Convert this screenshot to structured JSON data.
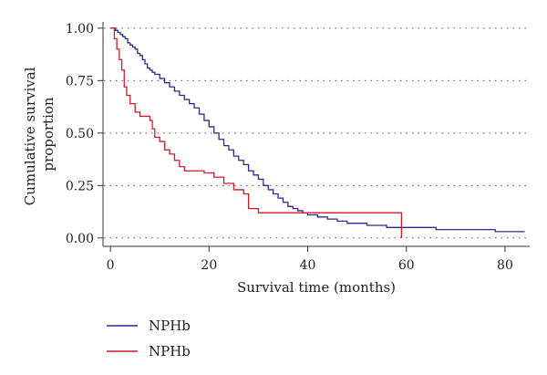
{
  "chart_data": {
    "type": "line",
    "title": "",
    "xlabel": "Survival time (months)",
    "ylabel": "Cumulative survival proportion",
    "ylabel_lines": [
      "Cumulative survival",
      "proportion"
    ],
    "xlim": [
      -1.5,
      85
    ],
    "ylim": [
      -0.04,
      1.03
    ],
    "xticks": [
      0,
      20,
      40,
      60,
      80
    ],
    "xtick_labels": [
      "0",
      "20",
      "40",
      "60",
      "80"
    ],
    "yticks": [
      0,
      0.25,
      0.5,
      0.75,
      1.0
    ],
    "ytick_labels": [
      "0.00",
      "0.25",
      "0.50",
      "0.75",
      "1.00"
    ],
    "grid": "horizontal-dotted",
    "legend_position": "bottom-left",
    "series": [
      {
        "name": "NPHb",
        "color": "#2b2b8f",
        "step": true,
        "x": [
          0,
          1,
          1.5,
          2,
          2.5,
          3,
          3.5,
          4,
          4.5,
          5,
          5.5,
          6,
          6.5,
          7,
          7.5,
          8,
          8.5,
          9,
          10,
          11,
          12,
          13,
          14,
          15,
          16,
          17,
          18,
          19,
          20,
          21,
          22,
          23,
          24,
          25,
          26,
          27,
          28,
          29,
          30,
          31,
          32,
          33,
          34,
          35,
          36,
          37,
          38,
          39,
          40,
          42,
          44,
          46,
          48,
          52,
          56,
          60,
          66,
          72,
          78,
          84
        ],
        "y": [
          1.0,
          0.99,
          0.98,
          0.97,
          0.96,
          0.95,
          0.93,
          0.92,
          0.91,
          0.9,
          0.88,
          0.87,
          0.85,
          0.83,
          0.81,
          0.8,
          0.79,
          0.78,
          0.76,
          0.74,
          0.72,
          0.7,
          0.68,
          0.66,
          0.64,
          0.62,
          0.59,
          0.56,
          0.53,
          0.5,
          0.47,
          0.44,
          0.42,
          0.39,
          0.37,
          0.35,
          0.32,
          0.3,
          0.28,
          0.25,
          0.23,
          0.21,
          0.19,
          0.17,
          0.15,
          0.14,
          0.13,
          0.12,
          0.11,
          0.1,
          0.09,
          0.08,
          0.07,
          0.06,
          0.05,
          0.05,
          0.04,
          0.04,
          0.03,
          0.03
        ]
      },
      {
        "name": "NPHb",
        "color": "#d11a2a",
        "step": true,
        "x": [
          0,
          0.8,
          1.3,
          1.8,
          2.3,
          2.8,
          3.3,
          4,
          5,
          6,
          7,
          8,
          8.5,
          9,
          10,
          11,
          12,
          13,
          14,
          15,
          16,
          17,
          19,
          21,
          23,
          25,
          27,
          28,
          30,
          34,
          38,
          45,
          59,
          59.01
        ],
        "y": [
          1.0,
          0.95,
          0.9,
          0.85,
          0.8,
          0.72,
          0.68,
          0.64,
          0.6,
          0.58,
          0.58,
          0.56,
          0.52,
          0.48,
          0.46,
          0.42,
          0.4,
          0.37,
          0.34,
          0.32,
          0.32,
          0.32,
          0.31,
          0.29,
          0.26,
          0.23,
          0.21,
          0.14,
          0.12,
          0.12,
          0.12,
          0.12,
          0.12,
          0.0
        ]
      }
    ]
  }
}
